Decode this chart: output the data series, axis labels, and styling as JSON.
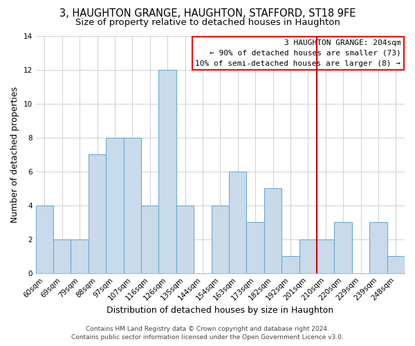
{
  "title": "3, HAUGHTON GRANGE, HAUGHTON, STAFFORD, ST18 9FE",
  "subtitle": "Size of property relative to detached houses in Haughton",
  "xlabel": "Distribution of detached houses by size in Haughton",
  "ylabel": "Number of detached properties",
  "bar_labels": [
    "60sqm",
    "69sqm",
    "79sqm",
    "88sqm",
    "97sqm",
    "107sqm",
    "116sqm",
    "126sqm",
    "135sqm",
    "144sqm",
    "154sqm",
    "163sqm",
    "173sqm",
    "182sqm",
    "192sqm",
    "201sqm",
    "210sqm",
    "220sqm",
    "229sqm",
    "239sqm",
    "248sqm"
  ],
  "bar_values": [
    4,
    2,
    2,
    7,
    8,
    8,
    4,
    12,
    4,
    0,
    4,
    6,
    3,
    5,
    1,
    2,
    2,
    3,
    0,
    3,
    1
  ],
  "bar_color": "#c9daea",
  "bar_edgecolor": "#6aaad4",
  "vline_x": 15.5,
  "vline_color": "#cc0000",
  "ylim": [
    0,
    14
  ],
  "yticks": [
    0,
    2,
    4,
    6,
    8,
    10,
    12,
    14
  ],
  "grid_color": "#d0d0d0",
  "bg_color": "#ffffff",
  "annotation_title": "3 HAUGHTON GRANGE: 204sqm",
  "annotation_line1": "← 90% of detached houses are smaller (73)",
  "annotation_line2": "10% of semi-detached houses are larger (8) →",
  "footer_line1": "Contains HM Land Registry data © Crown copyright and database right 2024.",
  "footer_line2": "Contains public sector information licensed under the Open Government Licence v3.0.",
  "title_fontsize": 10.5,
  "subtitle_fontsize": 9.5,
  "axis_label_fontsize": 9,
  "tick_fontsize": 7.5,
  "annotation_fontsize": 8,
  "footer_fontsize": 6.5
}
